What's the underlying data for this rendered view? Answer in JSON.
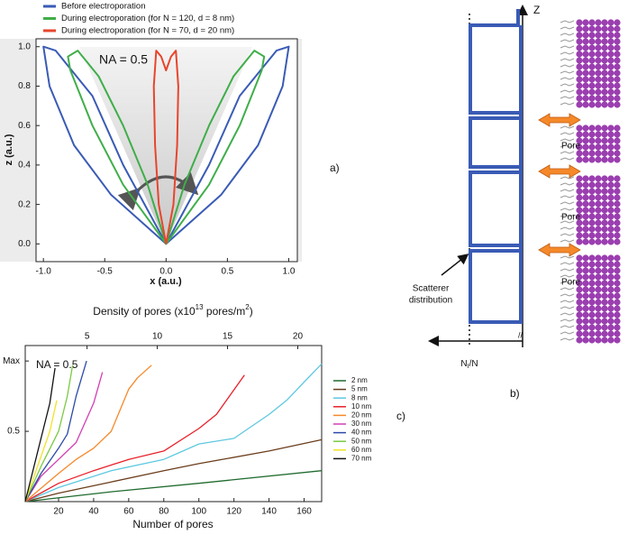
{
  "chart_data": [
    {
      "type": "line",
      "panel_label": "a)",
      "annotation": "NA = 0.5",
      "xlabel": "x (a.u.)",
      "ylabel": "z (a.u.)",
      "xlim": [
        -1.06,
        1.07
      ],
      "ylim": [
        -0.09,
        1.04
      ],
      "xticks": [
        {
          "value": -1,
          "label": "-1.0"
        },
        -0.5,
        {
          "value": 0,
          "label": "0.0"
        },
        0.5,
        {
          "value": 1,
          "label": "1.0"
        }
      ],
      "yticks": [
        {
          "value": 0,
          "label": "0.0"
        },
        0.2,
        0.4,
        0.6,
        0.8,
        {
          "value": 1,
          "label": "1.0"
        }
      ],
      "legend": "top",
      "series": [
        {
          "name": "Before electroporation",
          "color": "#3a5bb5",
          "x": [
            0,
            -0.45,
            -0.75,
            -0.95,
            -1.0,
            -0.9,
            -0.6,
            -0.35,
            0,
            0.35,
            0.6,
            0.9,
            1.0,
            0.95,
            0.75,
            0.45,
            0
          ],
          "values": [
            0,
            0.25,
            0.5,
            0.8,
            1.0,
            0.98,
            0.75,
            0.4,
            0,
            0.4,
            0.75,
            0.98,
            1.0,
            0.8,
            0.5,
            0.25,
            0
          ]
        },
        {
          "name": "During electroporation (for N = 120, d = 8 nm)",
          "color": "#3fae49",
          "x": [
            0,
            -0.35,
            -0.6,
            -0.78,
            -0.8,
            -0.72,
            -0.55,
            -0.35,
            -0.15,
            0,
            0.15,
            0.35,
            0.55,
            0.72,
            0.8,
            0.78,
            0.6,
            0.35,
            0
          ],
          "values": [
            0,
            0.3,
            0.6,
            0.88,
            0.95,
            0.98,
            0.85,
            0.6,
            0.3,
            0,
            0.3,
            0.6,
            0.85,
            0.98,
            0.95,
            0.88,
            0.6,
            0.3,
            0
          ]
        },
        {
          "name": "During electroporation (for N = 70, d = 20 nm)",
          "color": "#e8452c",
          "x": [
            0,
            -0.06,
            -0.09,
            -0.1,
            -0.08,
            -0.04,
            0,
            0.04,
            0.08,
            0.1,
            0.09,
            0.06,
            0
          ],
          "values": [
            0,
            0.2,
            0.5,
            0.8,
            0.98,
            0.95,
            0.88,
            0.95,
            0.98,
            0.8,
            0.5,
            0.2,
            0
          ]
        }
      ]
    },
    {
      "type": "line",
      "panel_label": "c)",
      "annotation": "NA = 0.5",
      "xlabel": "Number of pores",
      "x2label": [
        "Density of pores (x10",
        "13",
        " pores/m",
        "2",
        ")"
      ],
      "xlim": [
        1,
        170
      ],
      "ylim": [
        0,
        1.11
      ],
      "xticks": [
        20,
        40,
        60,
        80,
        100,
        120,
        140,
        160
      ],
      "x2lim": [
        0.6,
        21.7
      ],
      "x2ticks": [
        5,
        10,
        15,
        20
      ],
      "yticks": [
        0.5,
        {
          "value": 1,
          "label": "Max"
        }
      ],
      "legend": "right",
      "series": [
        {
          "name": "2 nm",
          "color": "#1f6b2e",
          "x": [
            1,
            50,
            100,
            170
          ],
          "values": [
            0,
            0.07,
            0.13,
            0.22
          ]
        },
        {
          "name": "5 nm",
          "color": "#6b3d1c",
          "x": [
            1,
            20,
            50,
            80,
            100,
            140,
            170
          ],
          "values": [
            0,
            0.06,
            0.14,
            0.22,
            0.27,
            0.36,
            0.44
          ]
        },
        {
          "name": "8 nm",
          "color": "#5ec8e0",
          "x": [
            1,
            20,
            50,
            80,
            100,
            120,
            140,
            150,
            160,
            170
          ],
          "values": [
            0,
            0.1,
            0.22,
            0.3,
            0.41,
            0.45,
            0.62,
            0.72,
            0.85,
            0.98
          ]
        },
        {
          "name": "10 nm",
          "color": "#e8202a",
          "x": [
            1,
            20,
            40,
            60,
            80,
            100,
            110,
            126
          ],
          "values": [
            0,
            0.13,
            0.22,
            0.3,
            0.36,
            0.52,
            0.62,
            0.9
          ]
        },
        {
          "name": "20 nm",
          "color": "#f5892a",
          "x": [
            1,
            20,
            30,
            40,
            50,
            60,
            65,
            73
          ],
          "values": [
            0,
            0.2,
            0.3,
            0.38,
            0.5,
            0.8,
            0.88,
            0.97
          ]
        },
        {
          "name": "30 nm",
          "color": "#d23fb2",
          "x": [
            1,
            10,
            20,
            30,
            40,
            45
          ],
          "values": [
            0,
            0.18,
            0.3,
            0.42,
            0.7,
            0.92
          ]
        },
        {
          "name": "40 nm",
          "color": "#2b4aa8",
          "x": [
            1,
            10,
            20,
            25,
            30,
            36
          ],
          "values": [
            0,
            0.2,
            0.38,
            0.48,
            0.75,
            1.0
          ]
        },
        {
          "name": "50 nm",
          "color": "#7ac943",
          "x": [
            1,
            10,
            20,
            25,
            28
          ],
          "values": [
            0,
            0.25,
            0.5,
            0.75,
            0.97
          ]
        },
        {
          "name": "60 nm",
          "color": "#f0e22a",
          "x": [
            1,
            8,
            15,
            19
          ],
          "values": [
            0,
            0.25,
            0.5,
            0.72
          ]
        },
        {
          "name": "70 nm",
          "color": "#111111",
          "x": [
            1,
            8,
            15,
            18
          ],
          "values": [
            0,
            0.35,
            0.7,
            0.95
          ]
        }
      ]
    }
  ],
  "diagram": {
    "panel_label": "b)",
    "axis_label": "Z",
    "pore_labels": [
      "Pore",
      "Pore",
      "Pore"
    ],
    "scatterer_label": [
      "Scatterer",
      "distribution"
    ],
    "n_label": "N",
    "n_sub": "I",
    "n_rest": "/N"
  }
}
